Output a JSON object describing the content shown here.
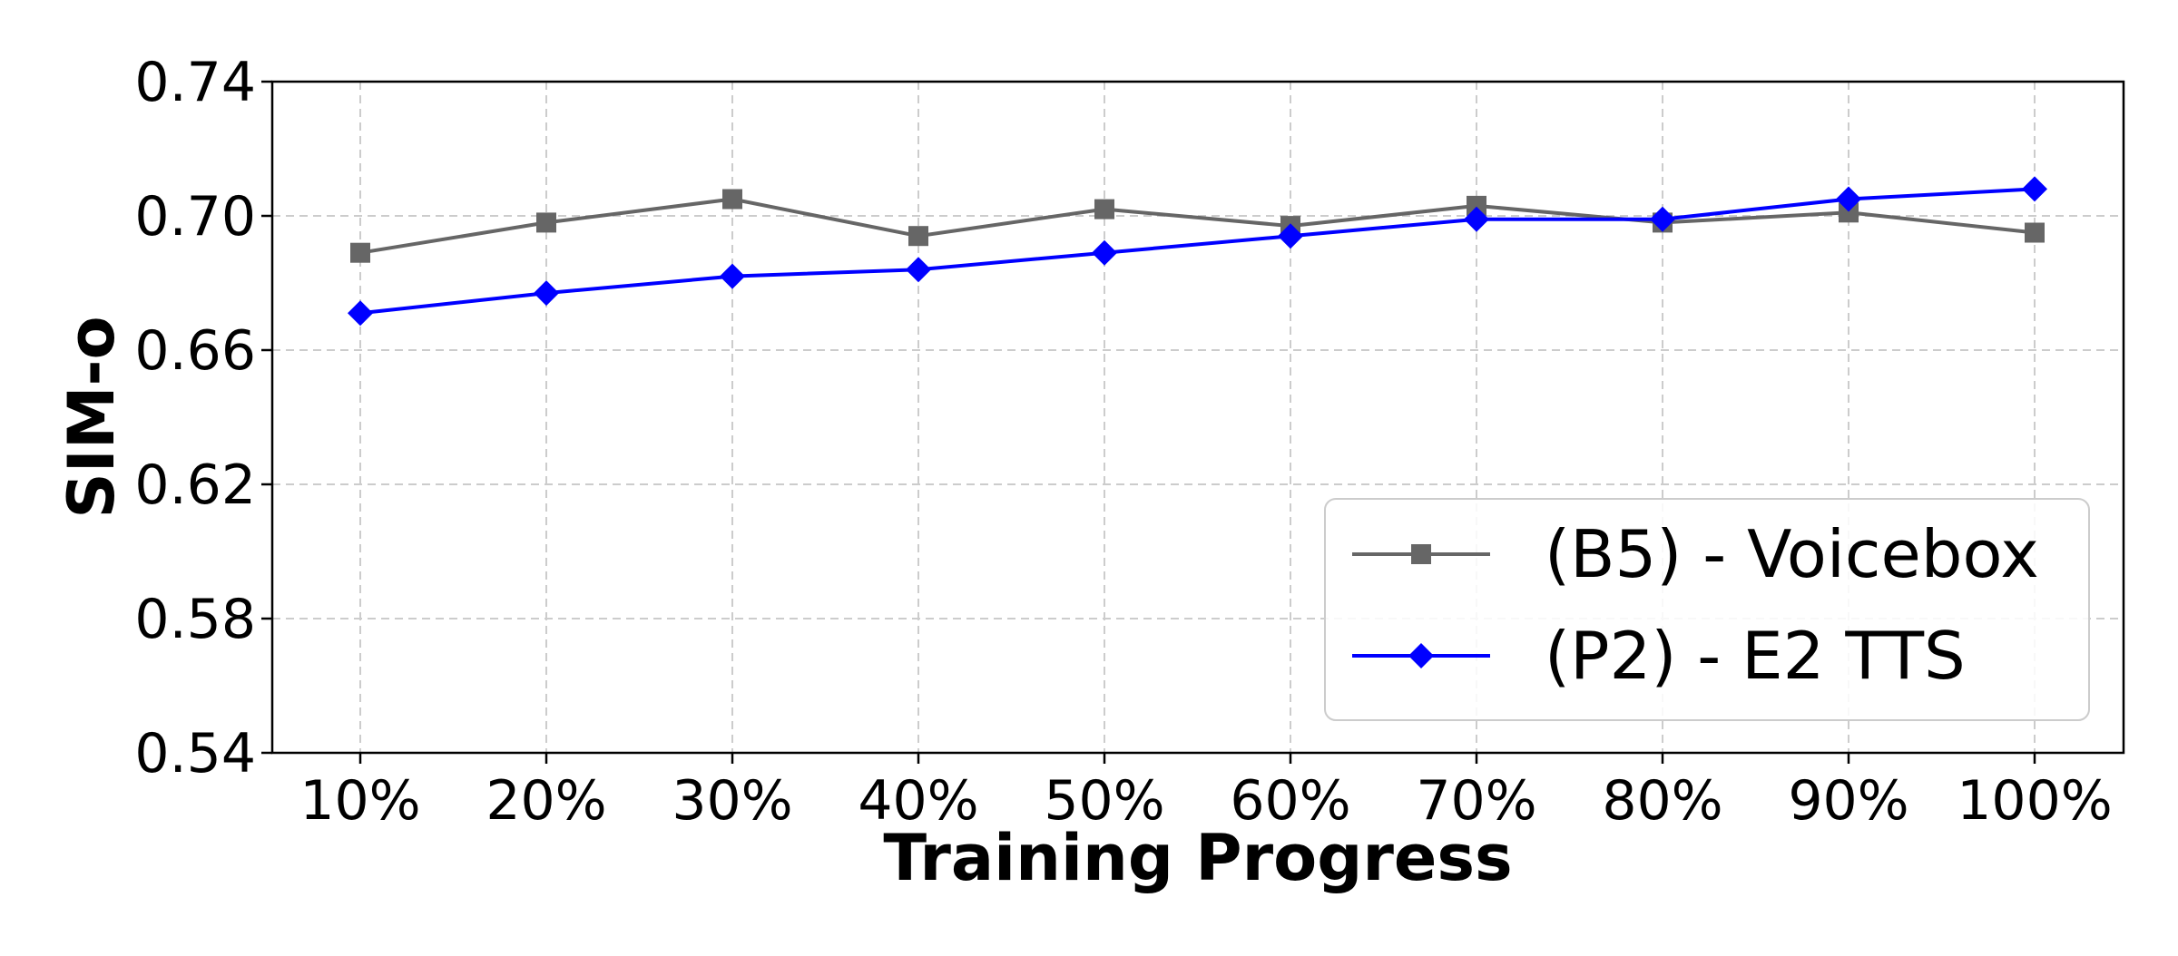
{
  "chart_data": {
    "type": "line",
    "title": "",
    "xlabel": "Training Progress",
    "ylabel": "SIM-o",
    "categories": [
      "10%",
      "20%",
      "30%",
      "40%",
      "50%",
      "60%",
      "70%",
      "80%",
      "90%",
      "100%"
    ],
    "ylim": [
      0.54,
      0.74
    ],
    "yticks": [
      "0.54",
      "0.58",
      "0.62",
      "0.66",
      "0.70",
      "0.74"
    ],
    "grid": true,
    "legend_position": "lower-right",
    "series": [
      {
        "name": "(B5) - Voicebox",
        "color": "#666666",
        "marker": "square",
        "values": [
          0.689,
          0.698,
          0.705,
          0.694,
          0.702,
          0.697,
          0.703,
          0.698,
          0.701,
          0.695
        ]
      },
      {
        "name": "(P2) - E2 TTS",
        "color": "#0000ff",
        "marker": "diamond",
        "values": [
          0.671,
          0.677,
          0.682,
          0.684,
          0.689,
          0.694,
          0.699,
          0.699,
          0.705,
          0.708
        ]
      }
    ]
  }
}
